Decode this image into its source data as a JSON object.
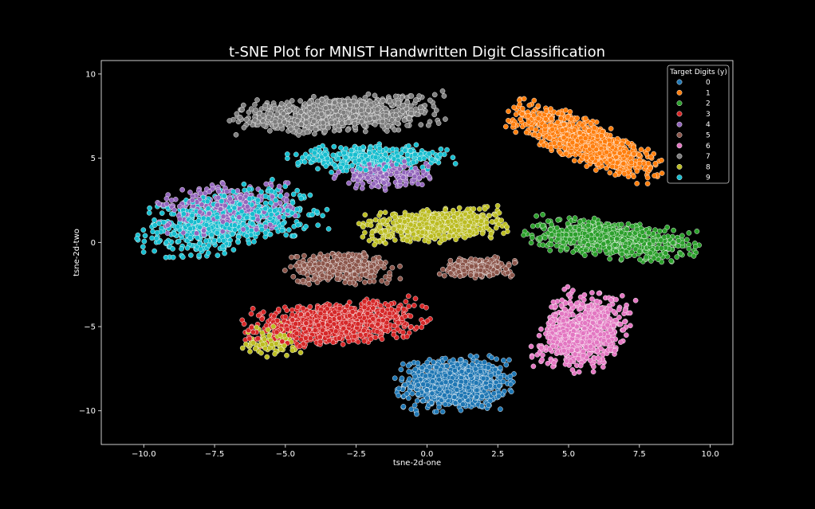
{
  "chart_data": {
    "type": "scatter",
    "title": "t-SNE Plot for MNIST Handwritten Digit Classification",
    "xlabel": "tsne-2d-one",
    "ylabel": "tsne-2d-two",
    "xlim": [
      -11.5,
      10.8
    ],
    "ylim": [
      -12,
      10.8
    ],
    "xticks": [
      -10.0,
      -7.5,
      -5.0,
      -2.5,
      0.0,
      2.5,
      5.0,
      7.5,
      10.0
    ],
    "xtick_labels": [
      "−10.0",
      "−7.5",
      "−5.0",
      "−2.5",
      "0.0",
      "2.5",
      "5.0",
      "7.5",
      "10.0"
    ],
    "yticks": [
      10,
      5,
      0,
      -5,
      -10
    ],
    "ytick_labels": [
      "10",
      "5",
      "0",
      "−5",
      "−10"
    ],
    "grid": false,
    "background": "#000000",
    "foreground": "#ffffff",
    "legend": {
      "title": "Target Digits (y)",
      "placement": "top-right"
    },
    "series": [
      {
        "name": "0",
        "color": "#1f77b4",
        "clusters": [
          {
            "cx": 1.0,
            "cy": -8.4,
            "sx": 1.6,
            "sy": 1.3,
            "angle": 0,
            "n": 900
          }
        ]
      },
      {
        "name": "1",
        "color": "#ff7f0e",
        "clusters": [
          {
            "cx": 5.6,
            "cy": 6.0,
            "sx": 2.6,
            "sy": 0.9,
            "angle": -38,
            "n": 900
          }
        ]
      },
      {
        "name": "2",
        "color": "#2ca02c",
        "clusters": [
          {
            "cx": 6.5,
            "cy": 0.2,
            "sx": 2.4,
            "sy": 0.9,
            "angle": -12,
            "n": 750
          }
        ]
      },
      {
        "name": "3",
        "color": "#d62728",
        "clusters": [
          {
            "cx": -3.2,
            "cy": -4.8,
            "sx": 2.6,
            "sy": 1.0,
            "angle": 8,
            "n": 900
          }
        ]
      },
      {
        "name": "4",
        "color": "#9467bd",
        "clusters": [
          {
            "cx": -7.0,
            "cy": 2.0,
            "sx": 2.0,
            "sy": 1.3,
            "angle": 10,
            "n": 350
          },
          {
            "cx": -1.5,
            "cy": 4.0,
            "sx": 1.4,
            "sy": 0.7,
            "angle": 0,
            "n": 200
          }
        ]
      },
      {
        "name": "5",
        "color": "#8c564b",
        "clusters": [
          {
            "cx": -3.0,
            "cy": -1.5,
            "sx": 1.6,
            "sy": 0.8,
            "angle": 0,
            "n": 350
          },
          {
            "cx": 1.8,
            "cy": -1.5,
            "sx": 1.1,
            "sy": 0.5,
            "angle": 0,
            "n": 220
          }
        ]
      },
      {
        "name": "6",
        "color": "#e377c2",
        "clusters": [
          {
            "cx": 5.5,
            "cy": -5.3,
            "sx": 1.2,
            "sy": 1.9,
            "angle": -15,
            "n": 800
          }
        ]
      },
      {
        "name": "7",
        "color": "#7f7f7f",
        "clusters": [
          {
            "cx": -3.2,
            "cy": 7.6,
            "sx": 3.0,
            "sy": 0.9,
            "angle": 5,
            "n": 850
          }
        ]
      },
      {
        "name": "8",
        "color": "#bcbd22",
        "clusters": [
          {
            "cx": 0.3,
            "cy": 1.0,
            "sx": 2.1,
            "sy": 0.8,
            "angle": 8,
            "n": 650
          },
          {
            "cx": -5.5,
            "cy": -5.8,
            "sx": 0.8,
            "sy": 0.8,
            "angle": 0,
            "n": 90
          }
        ]
      },
      {
        "name": "9",
        "color": "#17becf",
        "clusters": [
          {
            "cx": -7.0,
            "cy": 1.3,
            "sx": 2.7,
            "sy": 1.4,
            "angle": 22,
            "n": 650
          },
          {
            "cx": -2.0,
            "cy": 5.0,
            "sx": 2.4,
            "sy": 0.7,
            "angle": 0,
            "n": 350
          }
        ]
      }
    ]
  }
}
